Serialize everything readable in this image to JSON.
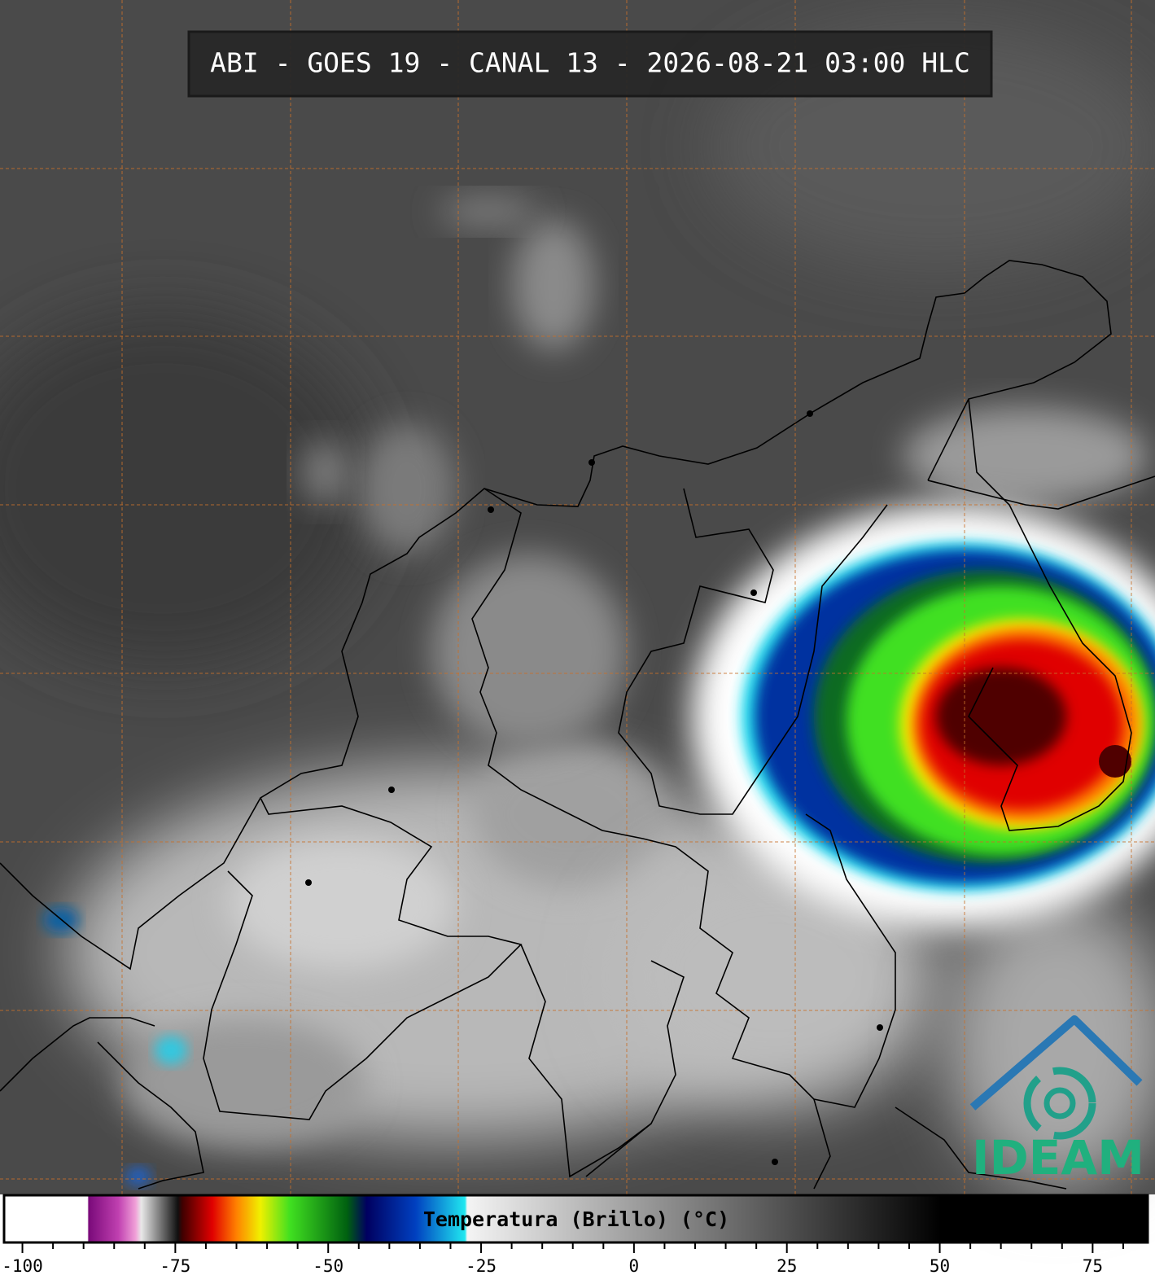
{
  "title": "ABI - GOES 19 - CANAL 13 - 2026-08-21 03:00 HLC",
  "logo": "IDEAM",
  "colorbar": {
    "label": "Temperatura (Brillo) (°C)",
    "xlim": [
      -103,
      84
    ],
    "xticks": [
      -100,
      -75,
      -50,
      -25,
      0,
      25,
      50,
      75
    ],
    "minor_xticks": [
      -95,
      -90,
      -85,
      -80,
      -70,
      -65,
      -60,
      -55,
      -45,
      -40,
      -35,
      -30,
      -20,
      -15,
      -10,
      -5,
      5,
      10,
      15,
      20,
      30,
      35,
      40,
      45,
      55,
      60,
      65,
      70,
      80
    ]
  }
}
